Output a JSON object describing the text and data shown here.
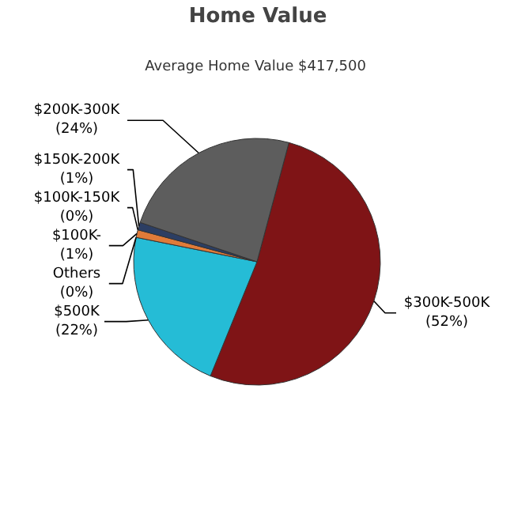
{
  "chart_data": {
    "type": "pie",
    "title": "Home Value",
    "subtitle": "Average Home Value  $417,500",
    "categories": [
      "$300K-500K",
      "$500K",
      "Others",
      "$100K-",
      "$100K-150K",
      "$150K-200K",
      "$200K-300K"
    ],
    "values": [
      52,
      22,
      0,
      1,
      0,
      1,
      24
    ],
    "value_labels": [
      "(52%)",
      "(22%)",
      "(0%)",
      "(1%)",
      "(0%)",
      "(1%)",
      "(24%)"
    ],
    "colors": [
      "#7f1416",
      "#25bcd6",
      "#8cc63f",
      "#e07b39",
      "#f0c020",
      "#2c3e63",
      "#5d5d5d"
    ]
  }
}
